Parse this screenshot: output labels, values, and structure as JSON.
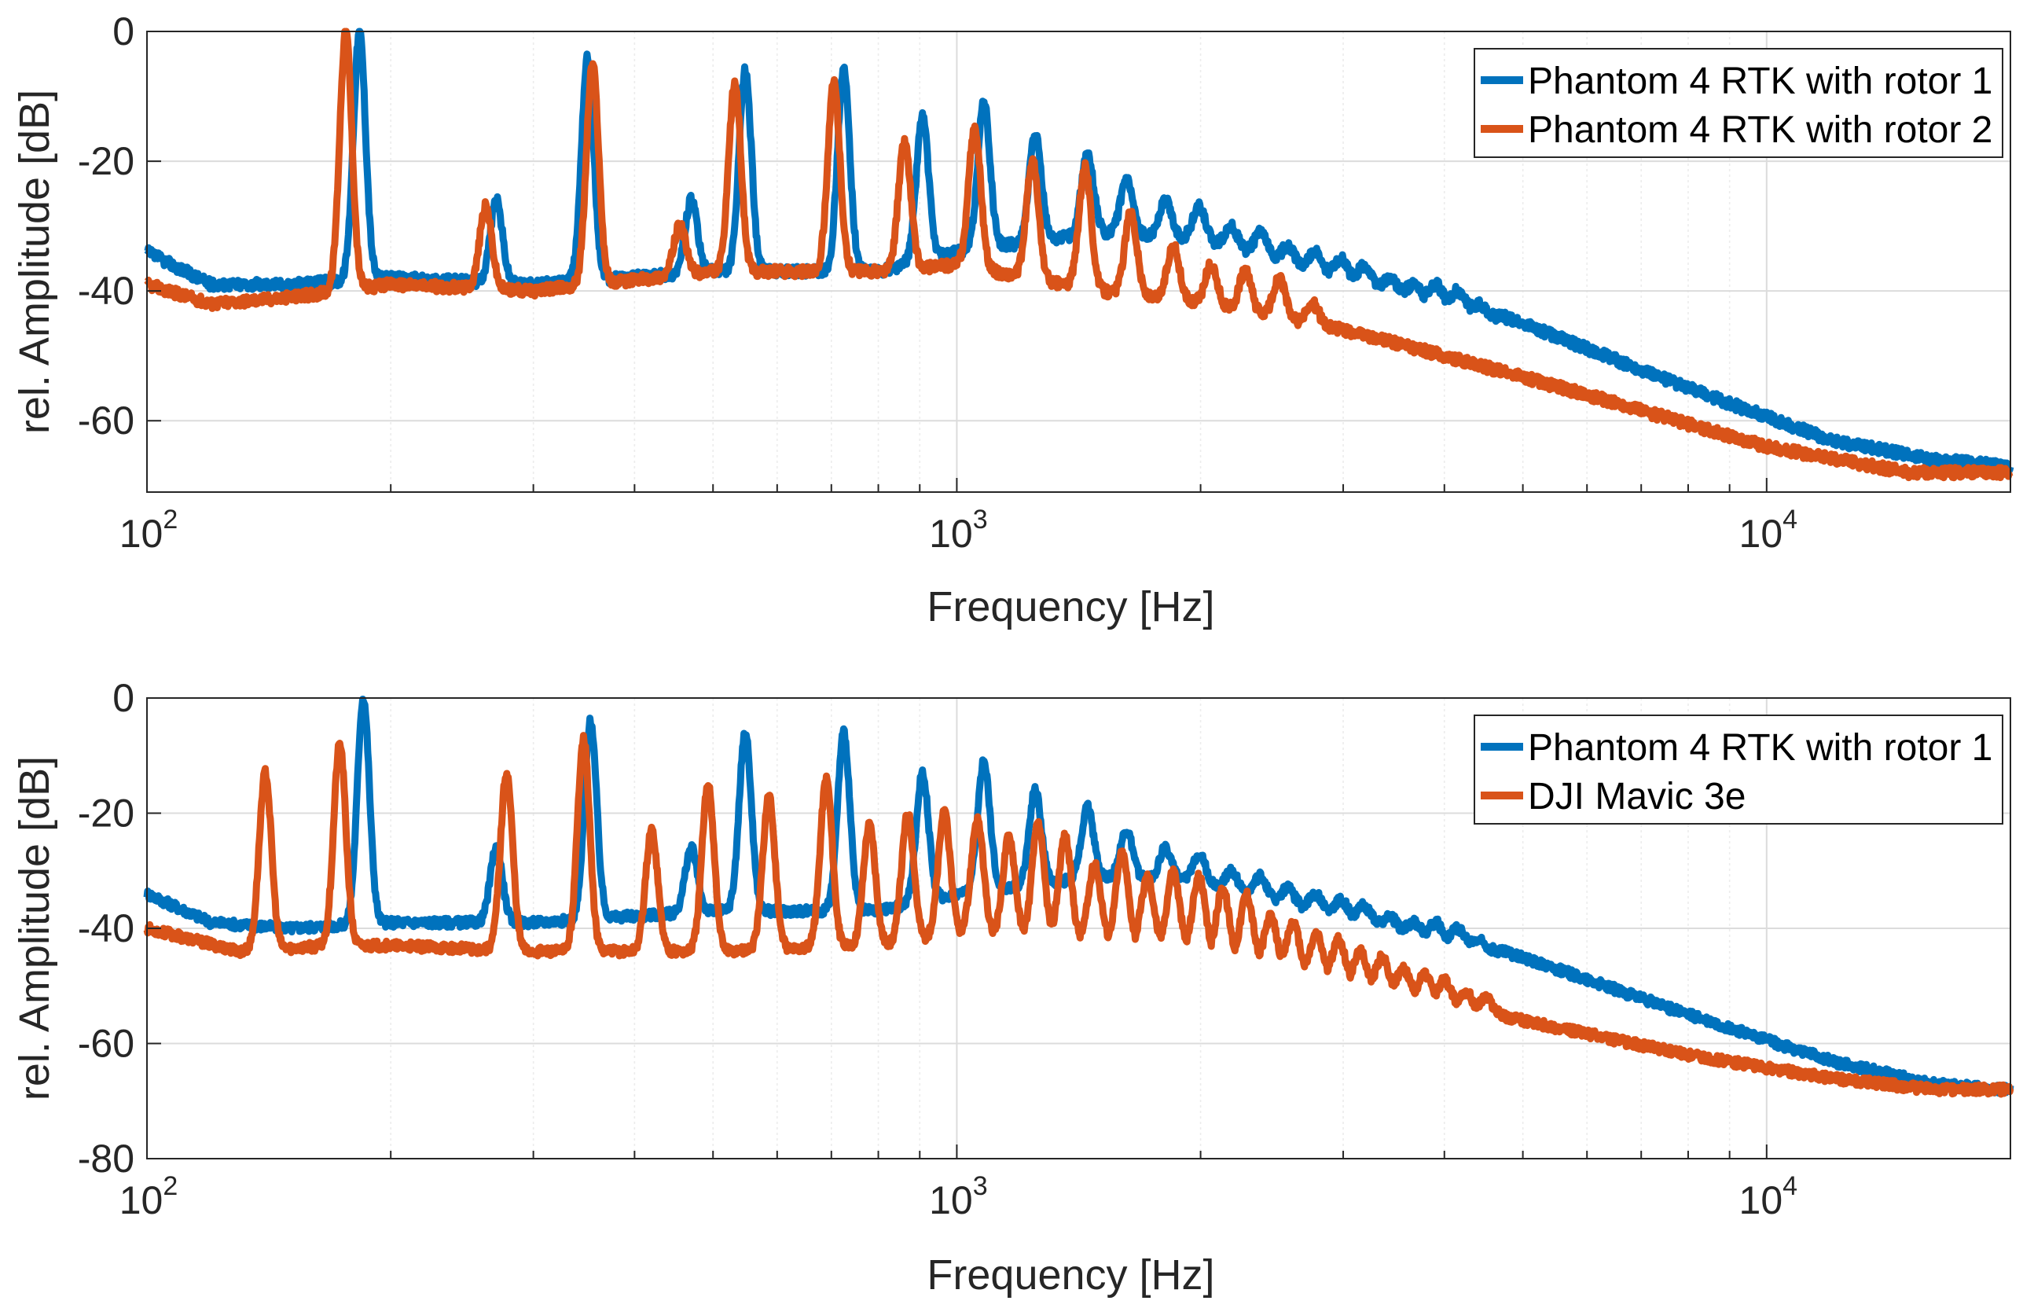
{
  "chart_data": [
    {
      "type": "line",
      "xscale": "log",
      "xlabel": "Frequency [Hz]",
      "ylabel": "rel. Amplitude [dB]",
      "xlim": [
        100,
        20000
      ],
      "ylim": [
        -71,
        0
      ],
      "grid": true,
      "legend_position": "top-right",
      "x_ticks": [
        {
          "base": "10",
          "exp": "2",
          "value": 100
        },
        {
          "base": "10",
          "exp": "3",
          "value": 1000
        },
        {
          "base": "10",
          "exp": "4",
          "value": 10000
        }
      ],
      "y_ticks": [
        {
          "label": "0",
          "value": 0
        },
        {
          "label": "-20",
          "value": -20
        },
        {
          "label": "-40",
          "value": -40
        },
        {
          "label": "-60",
          "value": -60
        }
      ],
      "series": [
        {
          "name": "Phantom 4 RTK with rotor 1",
          "color": "#0072BD",
          "baseline": [
            [
              100,
              -34
            ],
            [
              120,
              -39
            ],
            [
              150,
              -39
            ],
            [
              200,
              -38
            ],
            [
              300,
              -39
            ],
            [
              500,
              -37
            ],
            [
              800,
              -37
            ],
            [
              1000,
              -34
            ],
            [
              1500,
              -31
            ],
            [
              2000,
              -32
            ],
            [
              3000,
              -38
            ],
            [
              5000,
              -45
            ],
            [
              8000,
              -55
            ],
            [
              12000,
              -63
            ],
            [
              16000,
              -66
            ],
            [
              20000,
              -67
            ]
          ],
          "peaks": [
            [
              183,
              0
            ],
            [
              270,
              -26
            ],
            [
              350,
              -4
            ],
            [
              470,
              -26
            ],
            [
              548,
              -6
            ],
            [
              725,
              -6
            ],
            [
              907,
              -13
            ],
            [
              1080,
              -11
            ],
            [
              1250,
              -16
            ],
            [
              1450,
              -19
            ],
            [
              1620,
              -23
            ],
            [
              1810,
              -26
            ],
            [
              1990,
              -27
            ],
            [
              2180,
              -30
            ],
            [
              2370,
              -31
            ],
            [
              2560,
              -33
            ],
            [
              2770,
              -34
            ],
            [
              2980,
              -35
            ],
            [
              3180,
              -36
            ],
            [
              3420,
              -38
            ],
            [
              3660,
              -39
            ],
            [
              3900,
              -39
            ],
            [
              4150,
              -40
            ],
            [
              4400,
              -42
            ],
            [
              4700,
              -44
            ]
          ]
        },
        {
          "name": "Phantom 4 RTK with rotor 2",
          "color": "#D95319",
          "baseline": [
            [
              100,
              -39
            ],
            [
              120,
              -42
            ],
            [
              150,
              -41
            ],
            [
              200,
              -39
            ],
            [
              300,
              -40
            ],
            [
              500,
              -37
            ],
            [
              800,
              -37
            ],
            [
              1000,
              -36
            ],
            [
              1500,
              -40
            ],
            [
              2000,
              -42
            ],
            [
              3000,
              -46
            ],
            [
              4000,
              -50
            ],
            [
              6000,
              -56
            ],
            [
              10000,
              -64
            ],
            [
              15000,
              -68
            ],
            [
              20000,
              -68
            ]
          ],
          "peaks": [
            [
              176,
              0
            ],
            [
              262,
              -27
            ],
            [
              355,
              -5
            ],
            [
              455,
              -30
            ],
            [
              532,
              -8
            ],
            [
              705,
              -8
            ],
            [
              862,
              -17
            ],
            [
              1052,
              -15
            ],
            [
              1240,
              -20
            ],
            [
              1440,
              -21
            ],
            [
              1640,
              -28
            ],
            [
              1850,
              -33
            ],
            [
              2060,
              -36
            ],
            [
              2270,
              -37
            ],
            [
              2500,
              -38
            ],
            [
              2750,
              -42
            ]
          ]
        }
      ]
    },
    {
      "type": "line",
      "xscale": "log",
      "xlabel": "Frequency [Hz]",
      "ylabel": "rel. Amplitude [dB]",
      "xlim": [
        100,
        20000
      ],
      "ylim": [
        -80,
        0
      ],
      "grid": true,
      "legend_position": "top-right",
      "x_ticks": [
        {
          "base": "10",
          "exp": "2",
          "value": 100
        },
        {
          "base": "10",
          "exp": "3",
          "value": 1000
        },
        {
          "base": "10",
          "exp": "4",
          "value": 10000
        }
      ],
      "y_ticks": [
        {
          "label": "0",
          "value": 0
        },
        {
          "label": "-20",
          "value": -20
        },
        {
          "label": "-40",
          "value": -40
        },
        {
          "label": "-60",
          "value": -60
        },
        {
          "label": "-80",
          "value": -80
        }
      ],
      "series": [
        {
          "name": "Phantom 4 RTK with rotor 1",
          "color": "#0072BD",
          "baseline": [
            [
              100,
              -34
            ],
            [
              120,
              -39
            ],
            [
              150,
              -40
            ],
            [
              200,
              -39
            ],
            [
              300,
              -39
            ],
            [
              500,
              -37
            ],
            [
              800,
              -37
            ],
            [
              1000,
              -34
            ],
            [
              1500,
              -31
            ],
            [
              2000,
              -32
            ],
            [
              3000,
              -38
            ],
            [
              5000,
              -45
            ],
            [
              8000,
              -55
            ],
            [
              12000,
              -63
            ],
            [
              16000,
              -67
            ],
            [
              20000,
              -68
            ]
          ],
          "peaks": [
            [
              185,
              0
            ],
            [
              270,
              -26
            ],
            [
              353,
              -4
            ],
            [
              470,
              -26
            ],
            [
              548,
              -6
            ],
            [
              725,
              -6
            ],
            [
              907,
              -13
            ],
            [
              1080,
              -11
            ],
            [
              1250,
              -16
            ],
            [
              1450,
              -19
            ],
            [
              1620,
              -23
            ],
            [
              1810,
              -26
            ],
            [
              1990,
              -27
            ],
            [
              2180,
              -30
            ],
            [
              2370,
              -31
            ],
            [
              2560,
              -33
            ],
            [
              2770,
              -34
            ],
            [
              2980,
              -35
            ],
            [
              3180,
              -36
            ],
            [
              3420,
              -38
            ],
            [
              3660,
              -39
            ],
            [
              3900,
              -39
            ],
            [
              4150,
              -40
            ],
            [
              4400,
              -42
            ],
            [
              4700,
              -44
            ]
          ]
        },
        {
          "name": "DJI Mavic 3e",
          "color": "#D95319",
          "baseline": [
            [
              100,
              -40
            ],
            [
              130,
              -44
            ],
            [
              170,
              -43
            ],
            [
              200,
              -43
            ],
            [
              300,
              -44
            ],
            [
              500,
              -44
            ],
            [
              800,
              -43
            ],
            [
              1000,
              -41
            ],
            [
              1500,
              -42
            ],
            [
              2000,
              -44
            ],
            [
              3000,
              -49
            ],
            [
              5000,
              -56
            ],
            [
              8000,
              -62
            ],
            [
              12000,
              -66
            ],
            [
              16000,
              -68
            ],
            [
              20000,
              -68
            ]
          ],
          "peaks": [
            [
              140,
              -13
            ],
            [
              173,
              -8
            ],
            [
              278,
              -13
            ],
            [
              346,
              -7
            ],
            [
              420,
              -23
            ],
            [
              493,
              -15
            ],
            [
              586,
              -17
            ],
            [
              690,
              -14
            ],
            [
              780,
              -22
            ],
            [
              870,
              -20
            ],
            [
              965,
              -20
            ],
            [
              1060,
              -21
            ],
            [
              1160,
              -24
            ],
            [
              1260,
              -22
            ],
            [
              1360,
              -24
            ],
            [
              1480,
              -29
            ],
            [
              1600,
              -27
            ],
            [
              1720,
              -31
            ],
            [
              1850,
              -30
            ],
            [
              1990,
              -31
            ],
            [
              2130,
              -33
            ],
            [
              2280,
              -34
            ],
            [
              2440,
              -38
            ],
            [
              2600,
              -39
            ],
            [
              2780,
              -41
            ],
            [
              2960,
              -42
            ],
            [
              3150,
              -44
            ],
            [
              3350,
              -45
            ],
            [
              3560,
              -47
            ],
            [
              3780,
              -48
            ],
            [
              4000,
              -49
            ],
            [
              4250,
              -51
            ],
            [
              4500,
              -52
            ]
          ]
        }
      ]
    }
  ]
}
